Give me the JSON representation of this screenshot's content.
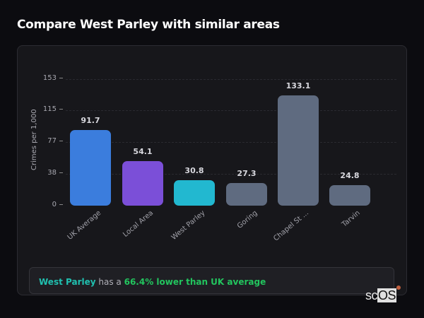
{
  "page": {
    "title": "Compare West Parley with similar areas"
  },
  "summary": {
    "location": "West Parley",
    "middle": " has a ",
    "stat": "66.4% lower than UK average"
  },
  "logo": {
    "prefix": "sc",
    "highlight": "OS"
  },
  "chart_data": {
    "type": "bar",
    "title": "Compare West Parley with similar areas",
    "xlabel": "",
    "ylabel": "Crimes per 1,000",
    "ylim": [
      0,
      153
    ],
    "yticks": [
      0,
      38,
      77,
      115,
      153
    ],
    "grid": true,
    "legend": "none",
    "categories": [
      "UK Average",
      "Local Area",
      "West Parley",
      "Goring",
      "Chapel St ...",
      "Tarvin"
    ],
    "values": [
      91.7,
      54.1,
      30.8,
      27.3,
      133.1,
      24.8
    ],
    "value_labels": [
      "91.7",
      "54.1",
      "30.8",
      "27.3",
      "133.1",
      "24.8"
    ],
    "colors": [
      "#3b7ddd",
      "#7b4fd8",
      "#22b8d0",
      "#5f6b80",
      "#5f6b80",
      "#5f6b80"
    ]
  }
}
